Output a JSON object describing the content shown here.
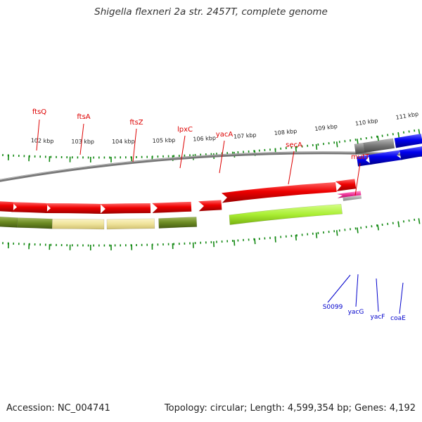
{
  "title": "Shigella flexneri 2a str. 2457T, complete genome",
  "footer": {
    "accession": "Accession: NC_004741",
    "topology": "Topology: circular; Length: 4,599,354 bp; Genes: 4,192"
  },
  "ruler": {
    "labels": [
      "102 kbp",
      "103 kbp",
      "104 kbp",
      "105 kbp",
      "106 kbp",
      "107 kbp",
      "108 kbp",
      "109 kbp",
      "110 kbp",
      "111 kbp"
    ]
  },
  "genes_top": [
    {
      "name": "ftsQ",
      "color": "#dd0000"
    },
    {
      "name": "ftsA",
      "color": "#dd0000"
    },
    {
      "name": "ftsZ",
      "color": "#dd0000"
    },
    {
      "name": "lpxC",
      "color": "#dd0000"
    },
    {
      "name": "yacA",
      "color": "#dd0000"
    },
    {
      "name": "secA",
      "color": "#dd0000"
    },
    {
      "name": "mutT",
      "color": "#dd0000"
    }
  ],
  "genes_bottom": [
    {
      "name": "S0099",
      "color": "#0000cc"
    },
    {
      "name": "yacG",
      "color": "#0000cc"
    },
    {
      "name": "yacF",
      "color": "#0000cc"
    },
    {
      "name": "coaE",
      "color": "#0000cc"
    }
  ],
  "colors": {
    "backbone": "#888888",
    "forward_cds": "#ee0000",
    "reverse_cds": "#0000ee",
    "ticks": "#118811",
    "cog_dark_olive": "#6b8a22",
    "cog_khaki": "#efe39a",
    "cog_lime": "#aaee33",
    "cog_pink": "#ee3399",
    "cog_gray": "#777777"
  }
}
